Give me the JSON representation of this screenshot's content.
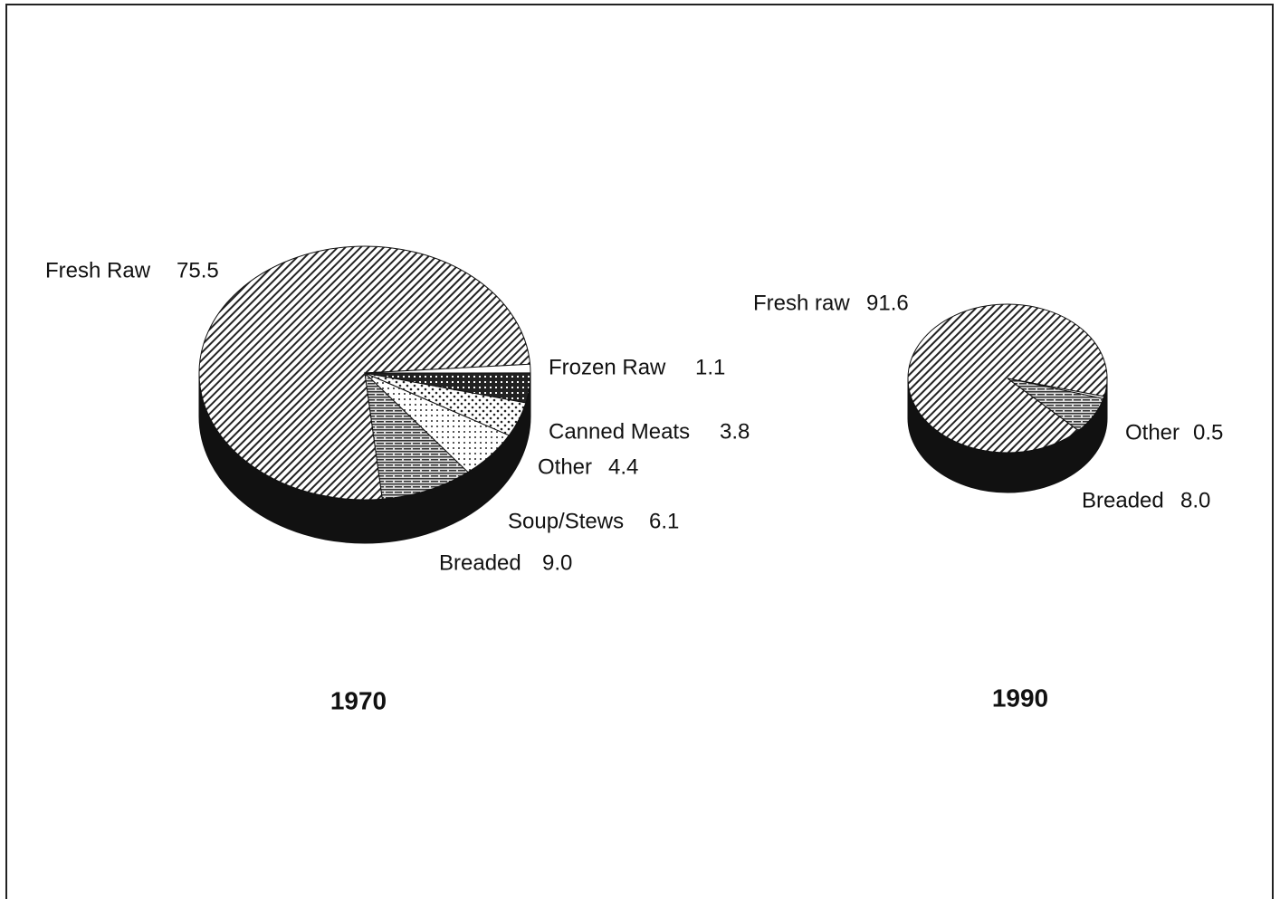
{
  "chart_data": [
    {
      "type": "pie",
      "title": "1970",
      "categories": [
        "Fresh Raw",
        "Frozen Raw",
        "Canned Meats",
        "Other",
        "Soup/Stews",
        "Breaded"
      ],
      "values": [
        75.5,
        1.1,
        3.8,
        4.4,
        6.1,
        9.0
      ],
      "value_labels": [
        "75.5",
        "1.1",
        "3.8",
        "4.4",
        "6.1",
        "9.0"
      ]
    },
    {
      "type": "pie",
      "title": "1990",
      "categories": [
        "Fresh raw",
        "Other",
        "Breaded"
      ],
      "values": [
        91.6,
        0.5,
        8.0
      ],
      "value_labels": [
        "91.6",
        "0.5",
        "8.0"
      ]
    }
  ]
}
